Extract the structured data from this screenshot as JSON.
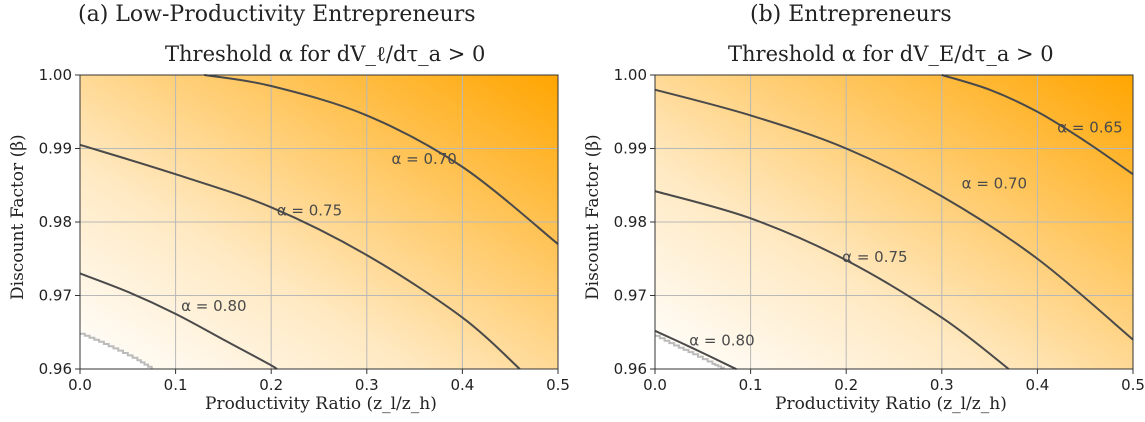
{
  "colors": {
    "high": "#ffa500",
    "low": "#ffffff",
    "contour": "#4a4a4a",
    "boundary": "#bbbbbb",
    "grid": "#b8b8b8"
  },
  "chart_data": [
    {
      "type": "heatmap",
      "caption": "(a) Low-Productivity Entrepreneurs",
      "title": "Threshold α for dV_ℓ/dτ_a > 0",
      "xlabel": "Productivity Ratio (z_l/z_h)",
      "ylabel": "Discount Factor (β)",
      "xlim": [
        0.0,
        0.5
      ],
      "ylim": [
        0.96,
        1.0
      ],
      "xticks": [
        "0.0",
        "0.1",
        "0.2",
        "0.3",
        "0.4",
        "0.5"
      ],
      "yticks": [
        "0.96",
        "0.97",
        "0.98",
        "0.99",
        "1.00"
      ],
      "grid": true,
      "contours": [
        {
          "label": "α = 0.70",
          "label_at": [
            0.36,
            0.9885
          ],
          "points": [
            [
              0.13,
              1.0
            ],
            [
              0.2,
              0.9985
            ],
            [
              0.3,
              0.9945
            ],
            [
              0.4,
              0.9875
            ],
            [
              0.5,
              0.977
            ]
          ]
        },
        {
          "label": "α = 0.75",
          "label_at": [
            0.24,
            0.9815
          ],
          "points": [
            [
              0.0,
              0.9905
            ],
            [
              0.1,
              0.9865
            ],
            [
              0.2,
              0.982
            ],
            [
              0.3,
              0.9755
            ],
            [
              0.4,
              0.967
            ],
            [
              0.46,
              0.96
            ]
          ]
        },
        {
          "label": "α = 0.80",
          "label_at": [
            0.14,
            0.9685
          ],
          "points": [
            [
              0.0,
              0.973
            ],
            [
              0.05,
              0.9705
            ],
            [
              0.1,
              0.9675
            ],
            [
              0.15,
              0.964
            ],
            [
              0.2,
              0.9605
            ],
            [
              0.205,
              0.96
            ]
          ]
        }
      ],
      "boundary": [
        [
          0.0,
          0.9648
        ],
        [
          0.02,
          0.9637
        ],
        [
          0.04,
          0.9625
        ],
        [
          0.06,
          0.9612
        ],
        [
          0.075,
          0.96
        ]
      ]
    },
    {
      "type": "heatmap",
      "caption": "(b) Entrepreneurs",
      "title": "Threshold α for dV_E/dτ_a > 0",
      "xlabel": "Productivity Ratio (z_l/z_h)",
      "ylabel": "Discount Factor (β)",
      "xlim": [
        0.0,
        0.5
      ],
      "ylim": [
        0.96,
        1.0
      ],
      "xticks": [
        "0.0",
        "0.1",
        "0.2",
        "0.3",
        "0.4",
        "0.5"
      ],
      "yticks": [
        "0.96",
        "0.97",
        "0.98",
        "0.99",
        "1.00"
      ],
      "grid": true,
      "contours": [
        {
          "label": "α = 0.65",
          "label_at": [
            0.455,
            0.9928
          ],
          "points": [
            [
              0.3,
              1.0
            ],
            [
              0.35,
              0.998
            ],
            [
              0.4,
              0.995
            ],
            [
              0.45,
              0.991
            ],
            [
              0.5,
              0.9865
            ]
          ]
        },
        {
          "label": "α = 0.70",
          "label_at": [
            0.355,
            0.9852
          ],
          "points": [
            [
              0.0,
              0.998
            ],
            [
              0.1,
              0.9945
            ],
            [
              0.2,
              0.99
            ],
            [
              0.3,
              0.9835
            ],
            [
              0.4,
              0.975
            ],
            [
              0.5,
              0.964
            ]
          ]
        },
        {
          "label": "α = 0.75",
          "label_at": [
            0.23,
            0.9752
          ],
          "points": [
            [
              0.0,
              0.9842
            ],
            [
              0.1,
              0.9805
            ],
            [
              0.2,
              0.9748
            ],
            [
              0.3,
              0.967
            ],
            [
              0.37,
              0.96
            ]
          ]
        },
        {
          "label": "α = 0.80",
          "label_at": [
            0.07,
            0.9638
          ],
          "points": [
            [
              0.0,
              0.9652
            ],
            [
              0.04,
              0.9628
            ],
            [
              0.08,
              0.9603
            ],
            [
              0.085,
              0.96
            ]
          ]
        }
      ],
      "boundary": [
        [
          0.0,
          0.9645
        ],
        [
          0.02,
          0.9632
        ],
        [
          0.04,
          0.962
        ],
        [
          0.06,
          0.9607
        ],
        [
          0.072,
          0.96
        ]
      ]
    }
  ]
}
